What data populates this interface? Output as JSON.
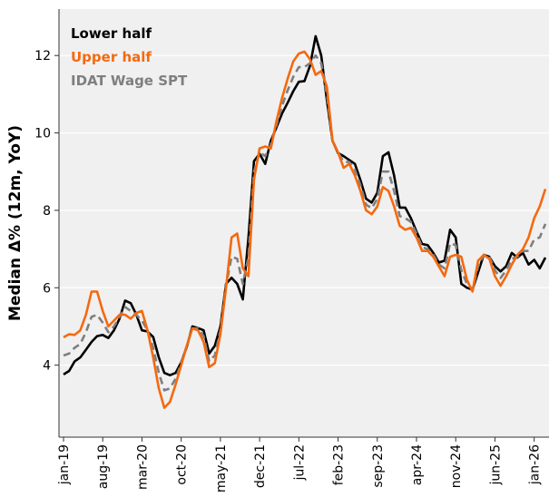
{
  "chart_data": {
    "type": "line",
    "y_label": "Median Δ% (12m, YoY)",
    "categories": [
      "jan-19",
      null,
      null,
      null,
      null,
      null,
      null,
      "aug-19",
      null,
      null,
      null,
      null,
      null,
      null,
      "mar-20",
      null,
      null,
      null,
      null,
      null,
      null,
      "oct-20",
      null,
      null,
      null,
      null,
      null,
      null,
      "may-21",
      null,
      null,
      null,
      null,
      null,
      null,
      "dec-21",
      null,
      null,
      null,
      null,
      null,
      null,
      "jul-22",
      null,
      null,
      null,
      null,
      null,
      null,
      "feb-23",
      null,
      null,
      null,
      null,
      null,
      null,
      "sep-23",
      null,
      null,
      null,
      null,
      null,
      null,
      "apr-24",
      null,
      null,
      null,
      null,
      null,
      null,
      "nov-24",
      null,
      null,
      null,
      null,
      null,
      null,
      "jun-25",
      null,
      null,
      null,
      null,
      null,
      null,
      "jan-26",
      null,
      null
    ],
    "series": [
      {
        "name": "Lower half",
        "color": "#000000",
        "dash": false,
        "values": [
          3.76,
          3.85,
          4.1,
          4.2,
          4.4,
          4.6,
          4.75,
          4.78,
          4.7,
          4.9,
          5.2,
          5.67,
          5.6,
          5.3,
          4.9,
          4.87,
          4.73,
          4.2,
          3.8,
          3.74,
          3.8,
          4.07,
          4.47,
          5.0,
          4.96,
          4.9,
          4.3,
          4.5,
          5.0,
          6.1,
          6.26,
          6.1,
          5.7,
          7.3,
          9.27,
          9.46,
          9.2,
          9.8,
          10.14,
          10.5,
          10.78,
          11.08,
          11.32,
          11.34,
          11.74,
          12.5,
          12.0,
          10.85,
          9.8,
          9.48,
          9.4,
          9.3,
          9.2,
          8.78,
          8.3,
          8.2,
          8.45,
          9.4,
          9.5,
          8.9,
          8.07,
          8.07,
          7.8,
          7.45,
          7.13,
          7.1,
          6.9,
          6.65,
          6.7,
          7.5,
          7.3,
          6.1,
          6.0,
          5.95,
          6.4,
          6.85,
          6.8,
          6.56,
          6.42,
          6.56,
          6.9,
          6.78,
          6.9,
          6.6,
          6.72,
          6.5,
          6.78
        ]
      },
      {
        "name": "Upper half",
        "color": "#f5690f",
        "dash": false,
        "values": [
          4.72,
          4.8,
          4.78,
          4.9,
          5.3,
          5.9,
          5.9,
          5.4,
          5.0,
          5.15,
          5.3,
          5.3,
          5.2,
          5.35,
          5.4,
          4.9,
          4.2,
          3.4,
          2.9,
          3.05,
          3.5,
          4.0,
          4.5,
          4.95,
          4.9,
          4.6,
          3.95,
          4.05,
          4.8,
          6.0,
          7.3,
          7.4,
          6.5,
          6.3,
          8.8,
          9.6,
          9.65,
          9.6,
          10.3,
          10.9,
          11.4,
          11.85,
          12.05,
          12.1,
          11.9,
          11.5,
          11.6,
          11.2,
          9.8,
          9.5,
          9.1,
          9.2,
          8.9,
          8.5,
          8.0,
          7.9,
          8.1,
          8.6,
          8.5,
          8.1,
          7.6,
          7.5,
          7.55,
          7.3,
          6.95,
          6.95,
          6.8,
          6.55,
          6.3,
          6.8,
          6.85,
          6.8,
          6.2,
          5.9,
          6.7,
          6.85,
          6.75,
          6.3,
          6.05,
          6.3,
          6.6,
          6.85,
          7.0,
          7.3,
          7.8,
          8.1,
          8.55
        ]
      },
      {
        "name": "IDAT Wage SPT",
        "color": "#7f7f7f",
        "dash": true,
        "values": [
          4.25,
          4.3,
          4.45,
          4.55,
          4.85,
          5.25,
          5.3,
          5.1,
          4.85,
          5.0,
          5.25,
          5.5,
          5.4,
          5.3,
          5.15,
          4.9,
          4.45,
          3.8,
          3.35,
          3.4,
          3.65,
          4.05,
          4.5,
          4.95,
          4.95,
          4.75,
          4.1,
          4.25,
          4.9,
          6.05,
          6.8,
          6.75,
          6.1,
          6.8,
          9.0,
          9.5,
          9.4,
          9.7,
          10.2,
          10.7,
          11.1,
          11.45,
          11.7,
          11.7,
          11.8,
          12.0,
          11.8,
          11.0,
          9.8,
          9.5,
          9.25,
          9.25,
          9.05,
          8.65,
          8.15,
          8.05,
          8.3,
          9.0,
          9.0,
          8.5,
          7.85,
          7.8,
          7.7,
          7.4,
          7.05,
          7.0,
          6.85,
          6.6,
          6.5,
          7.15,
          7.1,
          6.45,
          6.1,
          5.95,
          6.55,
          6.85,
          6.8,
          6.45,
          6.25,
          6.45,
          6.75,
          6.8,
          6.95,
          6.95,
          7.25,
          7.3,
          7.65
        ]
      }
    ],
    "ylim": [
      2.14,
      13.2
    ],
    "yticks": [
      4,
      6,
      8,
      10,
      12
    ],
    "grid": true,
    "legend": "upper left"
  }
}
